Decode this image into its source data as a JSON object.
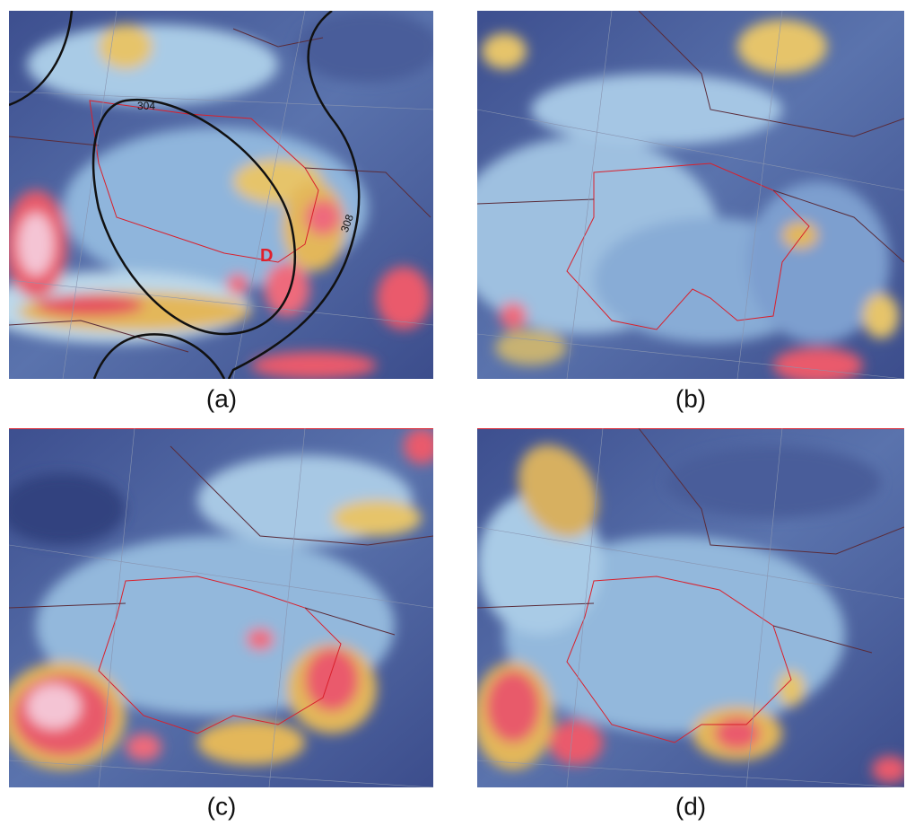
{
  "panels": [
    {
      "caption": "(a)",
      "contour_labels": [
        "304",
        "308"
      ],
      "marker": "D"
    },
    {
      "caption": "(b)"
    },
    {
      "caption": "(c)"
    },
    {
      "caption": "(d)"
    }
  ]
}
